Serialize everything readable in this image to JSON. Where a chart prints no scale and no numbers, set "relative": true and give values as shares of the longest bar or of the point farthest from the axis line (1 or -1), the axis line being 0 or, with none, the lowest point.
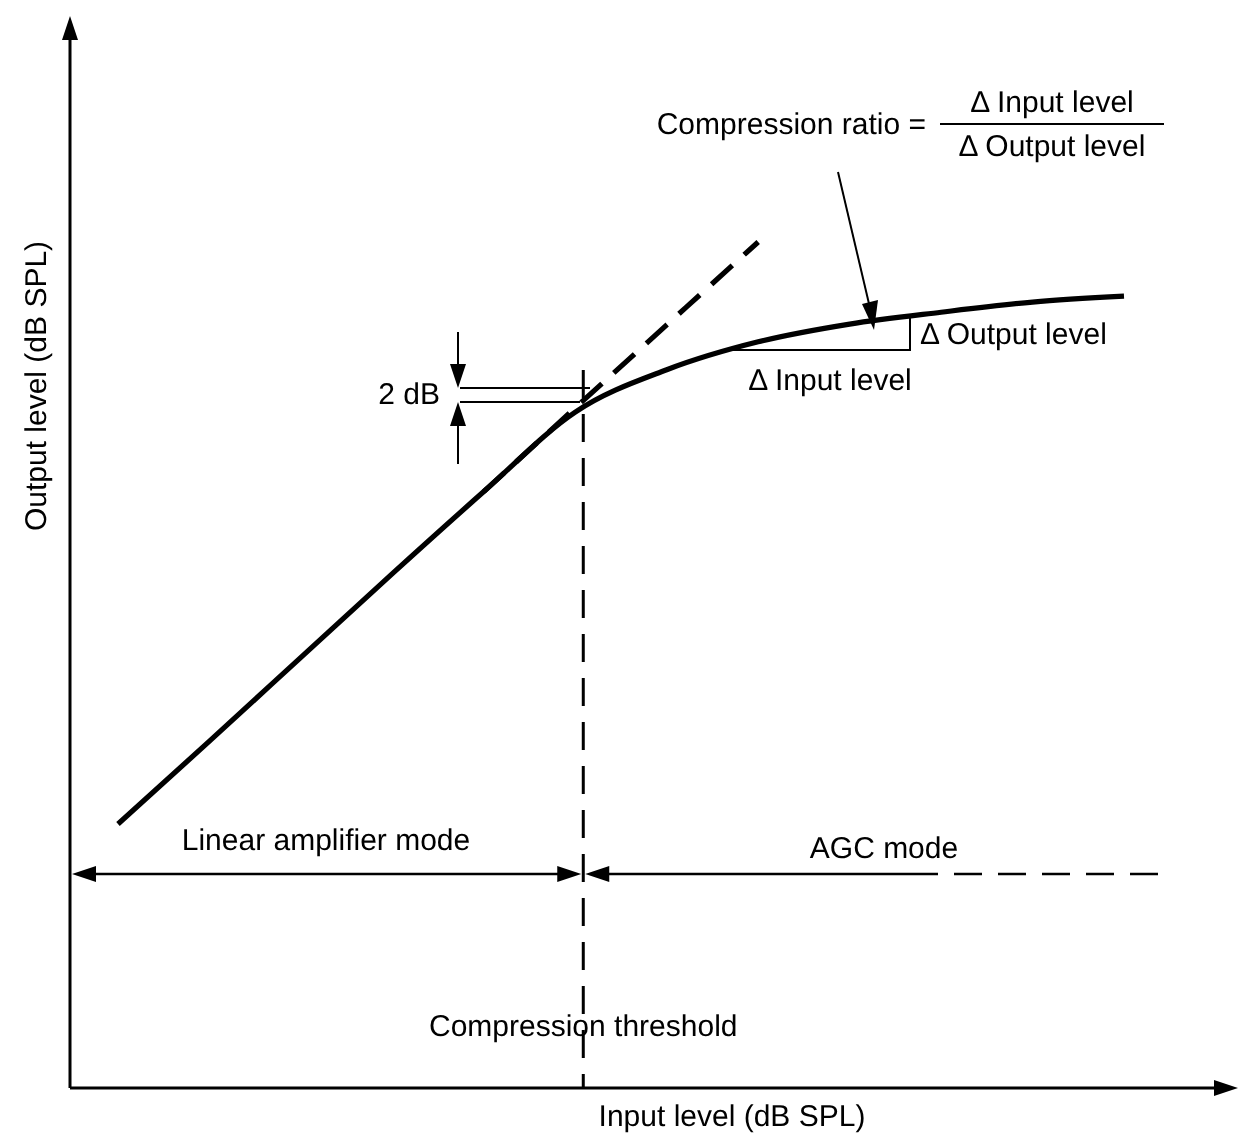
{
  "chart_data": {
    "type": "line",
    "relative": true,
    "xlabel": "Input level (dB SPL)",
    "ylabel": "Output level (dB SPL)",
    "categories": [
      null,
      null,
      null,
      null,
      null,
      null,
      null,
      null,
      null,
      null,
      null,
      null
    ],
    "series": [
      {
        "color": "#000000",
        "line_style": "solid",
        "values": [
          0.312,
          0.41,
          0.509,
          0.608,
          0.705,
          0.799,
          0.849,
          0.882,
          0.903,
          0.917,
          0.929,
          0.936
        ]
      },
      {
        "color": "#000000",
        "line_style": "dashed",
        "values": [
          null,
          null,
          null,
          null,
          0.705,
          0.804,
          0.902,
          1.0,
          null,
          null,
          null,
          null
        ]
      }
    ],
    "annotations": [
      "Compression ratio =",
      "Δ Input level",
      "Δ Output level",
      "Δ Output level",
      "Δ Input level",
      "2 dB",
      "Linear amplifier mode",
      "AGC mode",
      "Compression threshold"
    ],
    "marker": "none"
  }
}
